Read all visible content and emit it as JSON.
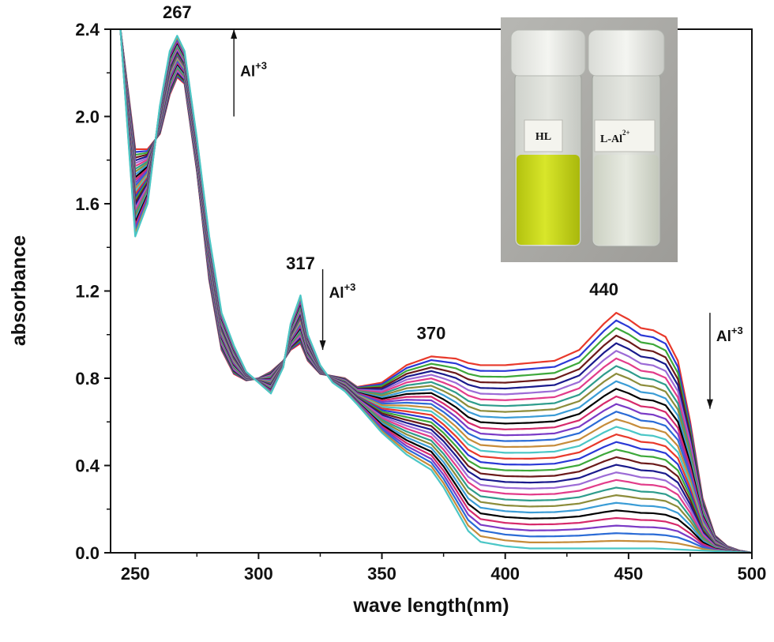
{
  "chart_data": {
    "type": "line",
    "xlabel": "wave length(nm)",
    "ylabel": "absorbance",
    "xlim": [
      240,
      500
    ],
    "ylim": [
      0.0,
      2.4
    ],
    "x_ticks": [
      "250",
      "300",
      "350",
      "400",
      "450",
      "500"
    ],
    "y_ticks": [
      "0.0",
      "0.4",
      "0.8",
      "1.2",
      "1.6",
      "2.0",
      "2.4"
    ],
    "grid": false,
    "legend": "none",
    "series_count": 32,
    "series_colors": [
      "#e8392b",
      "#2a38d6",
      "#3da83a",
      "#6b1a1a",
      "#1a1a8c",
      "#9c6bd6",
      "#e23c8a",
      "#2e9c8c",
      "#8c8c3a",
      "#3a9cd6",
      "#000000",
      "#d62a6b",
      "#7a3ac6",
      "#2a6bd6",
      "#c68c3a",
      "#4ac6c6"
    ],
    "end_members": {
      "initial_HL": {
        "x": [
          244,
          250,
          255,
          260,
          264,
          267,
          270,
          275,
          280,
          285,
          290,
          295,
          300,
          305,
          310,
          313,
          317,
          320,
          325,
          330,
          335,
          340,
          350,
          360,
          370,
          380,
          385,
          390,
          400,
          410,
          420,
          430,
          435,
          440,
          445,
          450,
          455,
          460,
          465,
          470,
          475,
          480,
          485,
          490,
          495,
          500
        ],
        "y": [
          2.4,
          1.85,
          1.85,
          1.92,
          2.1,
          2.18,
          2.15,
          1.75,
          1.25,
          0.93,
          0.82,
          0.79,
          0.8,
          0.83,
          0.88,
          0.93,
          0.96,
          0.88,
          0.82,
          0.81,
          0.8,
          0.76,
          0.78,
          0.86,
          0.9,
          0.89,
          0.87,
          0.86,
          0.86,
          0.87,
          0.88,
          0.93,
          0.99,
          1.05,
          1.1,
          1.07,
          1.03,
          1.02,
          0.99,
          0.88,
          0.6,
          0.25,
          0.08,
          0.03,
          0.01,
          0.0
        ]
      },
      "final_L_Al": {
        "x": [
          244,
          250,
          255,
          260,
          264,
          267,
          270,
          275,
          280,
          285,
          290,
          295,
          300,
          305,
          310,
          313,
          317,
          320,
          325,
          330,
          335,
          340,
          350,
          360,
          370,
          375,
          380,
          385,
          390,
          400,
          410,
          420,
          430,
          440,
          450,
          460,
          470,
          480,
          490,
          500
        ],
        "y": [
          2.4,
          1.45,
          1.6,
          2.05,
          2.3,
          2.37,
          2.3,
          1.9,
          1.45,
          1.1,
          0.95,
          0.83,
          0.78,
          0.73,
          0.85,
          1.05,
          1.18,
          1.0,
          0.86,
          0.78,
          0.74,
          0.68,
          0.55,
          0.45,
          0.38,
          0.3,
          0.2,
          0.1,
          0.05,
          0.03,
          0.02,
          0.02,
          0.02,
          0.02,
          0.02,
          0.02,
          0.015,
          0.01,
          0.005,
          0.0
        ]
      }
    },
    "annotations": [
      {
        "text": "267",
        "x": 267,
        "y": 2.45
      },
      {
        "text": "317",
        "x": 317,
        "y": 1.3
      },
      {
        "text": "370",
        "x": 370,
        "y": 0.98
      },
      {
        "text": "440",
        "x": 440,
        "y": 1.18
      }
    ],
    "arrows": [
      {
        "label": "Al",
        "superscript": "+3",
        "direction": "up",
        "x": 290,
        "y_start": 2.0,
        "y_end": 2.4
      },
      {
        "label": "Al",
        "superscript": "+3",
        "direction": "down",
        "x": 326,
        "y_start": 1.3,
        "y_end": 0.93
      },
      {
        "label": "Al",
        "superscript": "+3",
        "direction": "down",
        "x": 483,
        "y_start": 1.1,
        "y_end": 0.66
      }
    ]
  },
  "inset": {
    "vials": [
      {
        "label": "HL",
        "sup": "",
        "liquid_color": "#cfdc1e"
      },
      {
        "label": "L-Al",
        "sup": "2+",
        "liquid_color": "#dde3d4"
      }
    ]
  }
}
